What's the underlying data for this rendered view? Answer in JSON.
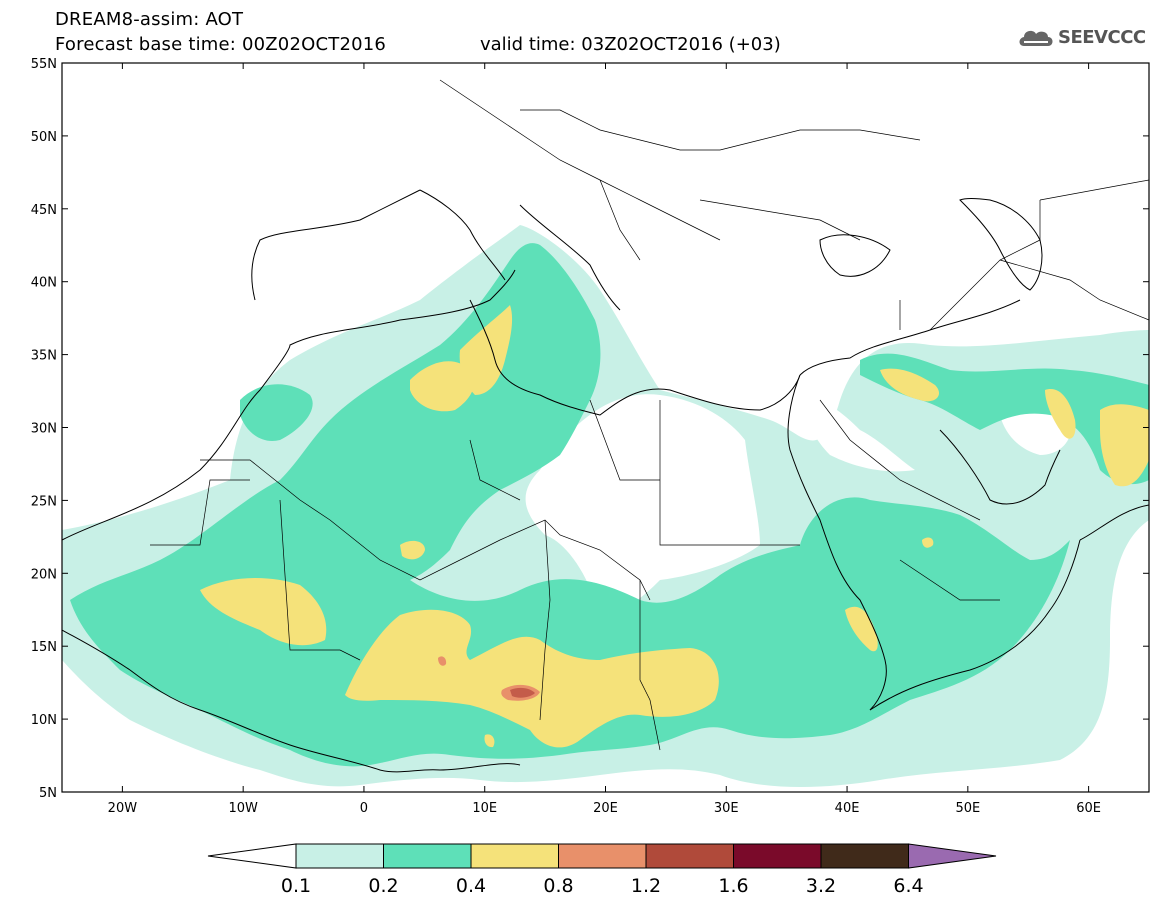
{
  "header": {
    "title": "DREAM8-assim: AOT",
    "base_time": "Forecast base time: 00Z02OCT2016",
    "valid_time": "valid time: 03Z02OCT2016 (+03)",
    "logo_text": "SEEVCCC"
  },
  "map": {
    "lat_labels": [
      "55N",
      "50N",
      "45N",
      "40N",
      "35N",
      "30N",
      "25N",
      "20N",
      "15N",
      "10N",
      "5N"
    ],
    "lon_labels": [
      "20W",
      "10W",
      "0",
      "10E",
      "20E",
      "30E",
      "40E",
      "50E",
      "60E"
    ],
    "lat_range": [
      5,
      55
    ],
    "lon_range": [
      -25,
      65
    ]
  },
  "legend": {
    "labels": [
      "0.1",
      "0.2",
      "0.4",
      "0.8",
      "1.2",
      "1.6",
      "3.2",
      "6.4"
    ],
    "colors": [
      "#ffffff",
      "#c8f0e6",
      "#5ee0b8",
      "#f5e27a",
      "#e8906a",
      "#b04a3a",
      "#7a0a2a",
      "#402a1a",
      "#9a6ab0"
    ]
  }
}
